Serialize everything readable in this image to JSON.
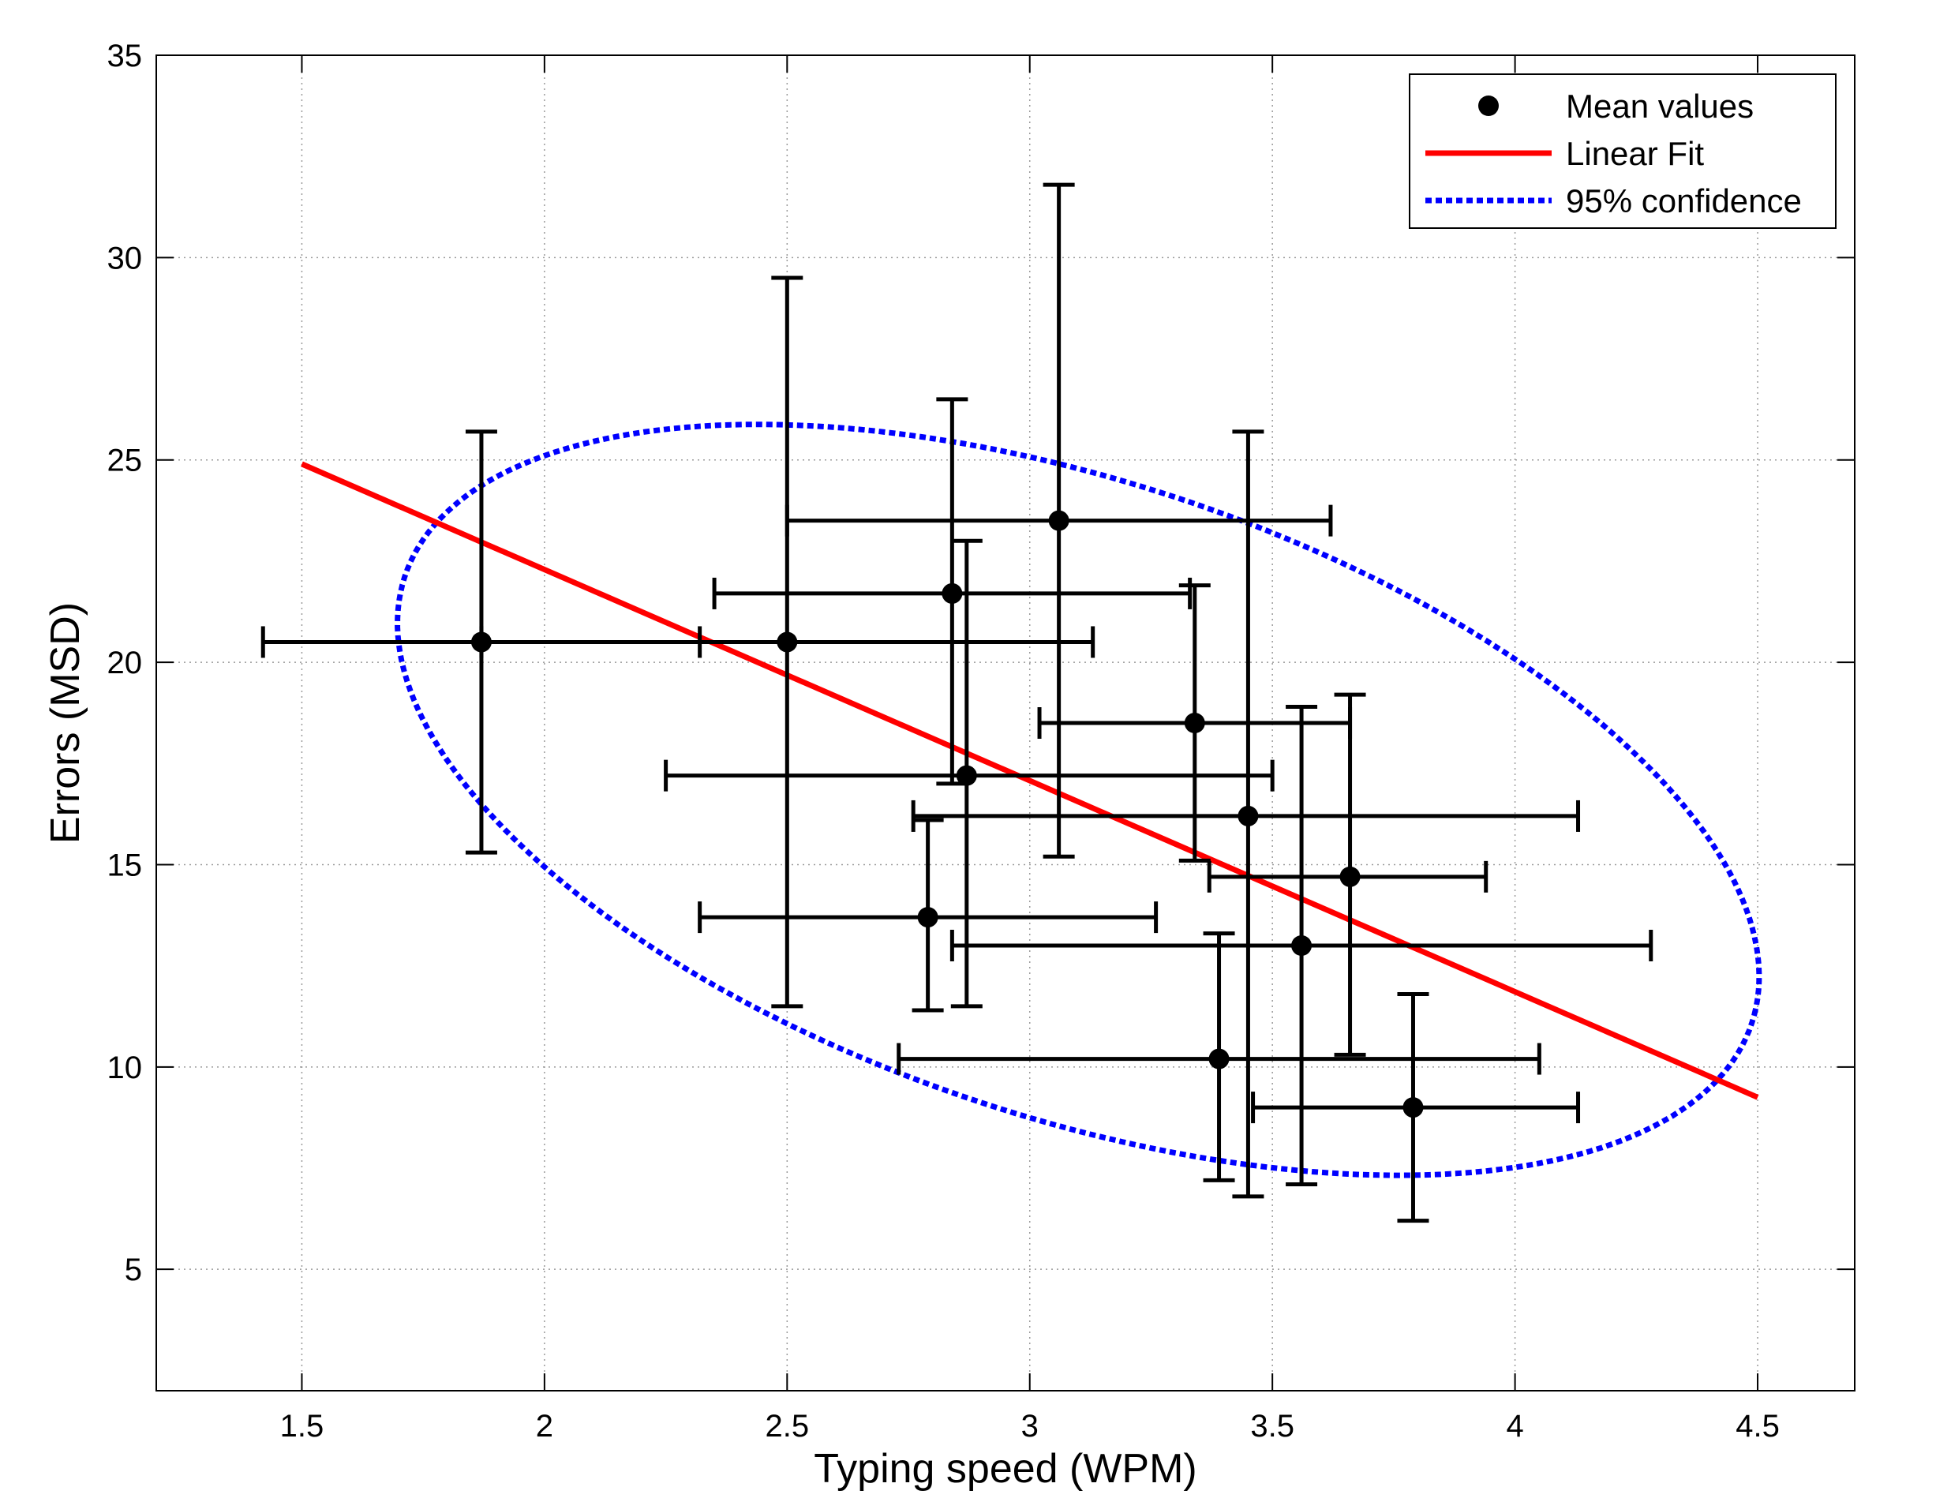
{
  "chart_data": {
    "type": "scatter",
    "xlabel": "Typing speed (WPM)",
    "ylabel": "Errors (MSD)",
    "xlim": [
      1.2,
      4.7
    ],
    "ylim": [
      2,
      35
    ],
    "xticks": [
      1.5,
      2,
      2.5,
      3,
      3.5,
      4,
      4.5
    ],
    "xtick_labels": [
      "1.5",
      "2",
      "2.5",
      "3",
      "3.5",
      "4",
      "4.5"
    ],
    "yticks": [
      5,
      10,
      15,
      20,
      25,
      30,
      35
    ],
    "ytick_labels": [
      "5",
      "10",
      "15",
      "20",
      "25",
      "30",
      "35"
    ],
    "grid": true,
    "legend": {
      "position": "top-right",
      "entries": [
        "Mean values",
        "Linear Fit",
        "95% confidence"
      ]
    },
    "colors": {
      "points": "#000000",
      "fit": "#ff0000",
      "confidence": "#0000ff"
    },
    "points": [
      {
        "x": 1.87,
        "y": 20.5,
        "xmin": 1.42,
        "xmax": 2.32,
        "ymin": 15.3,
        "ymax": 25.7
      },
      {
        "x": 2.5,
        "y": 20.5,
        "xmin": 1.87,
        "xmax": 3.13,
        "ymin": 11.5,
        "ymax": 29.5
      },
      {
        "x": 2.84,
        "y": 21.7,
        "xmin": 2.35,
        "xmax": 3.33,
        "ymin": 17.0,
        "ymax": 26.5
      },
      {
        "x": 3.06,
        "y": 23.5,
        "xmin": 2.5,
        "xmax": 3.62,
        "ymin": 15.2,
        "ymax": 31.8
      },
      {
        "x": 2.87,
        "y": 17.2,
        "xmin": 2.25,
        "xmax": 3.5,
        "ymin": 11.5,
        "ymax": 23.0
      },
      {
        "x": 2.79,
        "y": 13.7,
        "xmin": 2.32,
        "xmax": 3.26,
        "ymin": 11.4,
        "ymax": 16.1
      },
      {
        "x": 3.34,
        "y": 18.5,
        "xmin": 3.02,
        "xmax": 3.66,
        "ymin": 15.1,
        "ymax": 21.9
      },
      {
        "x": 3.45,
        "y": 16.2,
        "xmin": 2.76,
        "xmax": 4.13,
        "ymin": 6.8,
        "ymax": 25.7
      },
      {
        "x": 3.66,
        "y": 14.7,
        "xmin": 3.37,
        "xmax": 3.94,
        "ymin": 10.3,
        "ymax": 19.2
      },
      {
        "x": 3.56,
        "y": 13.0,
        "xmin": 2.84,
        "xmax": 4.28,
        "ymin": 7.1,
        "ymax": 18.9
      },
      {
        "x": 3.39,
        "y": 10.2,
        "xmin": 2.73,
        "xmax": 4.05,
        "ymin": 7.2,
        "ymax": 13.3
      },
      {
        "x": 3.79,
        "y": 9.0,
        "xmin": 3.46,
        "xmax": 4.13,
        "ymin": 6.2,
        "ymax": 11.8
      }
    ],
    "linear_fit": {
      "x": [
        1.5,
        4.5
      ],
      "y": [
        24.9,
        9.25
      ]
    },
    "confidence_ellipse": {
      "center": [
        3.1,
        16.6
      ],
      "semi_axis_major": 1.45,
      "semi_axis_minor": 0.6,
      "angle_deg": -16.1
    }
  }
}
